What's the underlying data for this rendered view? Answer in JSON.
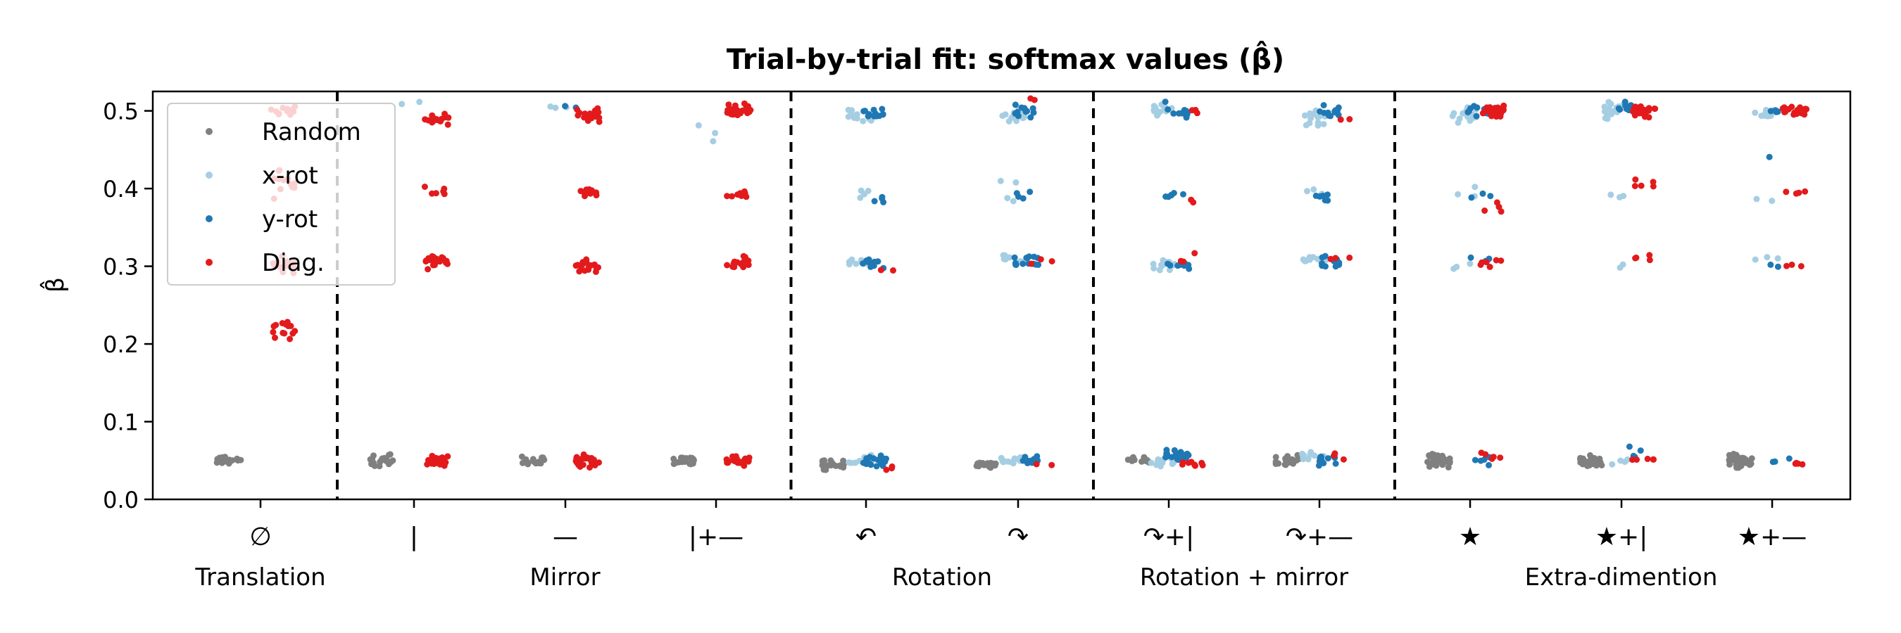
{
  "chart_data": {
    "type": "scatter",
    "title": "Trial-by-trial fit: softmax values (β̂)",
    "ylabel": "β̂",
    "xlabel": "",
    "ylim": [
      0.0,
      0.525
    ],
    "yticks": [
      0.0,
      0.1,
      0.2,
      0.3,
      0.4,
      0.5
    ],
    "grid": false,
    "legend_position": "top-left",
    "categories": [
      "∅",
      "|",
      "—",
      "|+—",
      "↶",
      "↷",
      "↷+|",
      "↷+—",
      "★",
      "★+|",
      "★+—"
    ],
    "groups": [
      {
        "label": "Translation",
        "categories": [
          "∅"
        ]
      },
      {
        "label": "Mirror",
        "categories": [
          "|",
          "—",
          "|+—"
        ]
      },
      {
        "label": "Rotation",
        "categories": [
          "↶",
          "↷"
        ]
      },
      {
        "label": "Rotation + mirror",
        "categories": [
          "↷+|",
          "↷+—"
        ]
      },
      {
        "label": "Extra-dimention",
        "categories": [
          "★",
          "★+|",
          "★+—"
        ]
      }
    ],
    "group_separators_after_category_index": [
      0,
      3,
      5,
      7
    ],
    "series": [
      {
        "name": "Random",
        "color": "#808080"
      },
      {
        "name": "x-rot",
        "color": "#a6cee3"
      },
      {
        "name": "y-rot",
        "color": "#1f78b4"
      },
      {
        "name": "Diag.",
        "color": "#e31a1c"
      }
    ],
    "points": [
      {
        "category": 0,
        "series": "Random",
        "clusters": [
          {
            "y": 0.05,
            "spread": 0.009,
            "n": 22
          }
        ]
      },
      {
        "category": 0,
        "series": "Diag.",
        "clusters": [
          {
            "y": 0.5,
            "spread": 0.01,
            "n": 14
          },
          {
            "y": 0.41,
            "spread": 0.03,
            "n": 12
          },
          {
            "y": 0.3,
            "spread": 0.02,
            "n": 16
          },
          {
            "y": 0.22,
            "spread": 0.02,
            "n": 14
          }
        ]
      },
      {
        "category": 1,
        "series": "Random",
        "clusters": [
          {
            "y": 0.05,
            "spread": 0.012,
            "n": 22
          }
        ]
      },
      {
        "category": 1,
        "series": "x-rot",
        "clusters": [
          {
            "y": 0.51,
            "spread": 0.004,
            "n": 2
          }
        ]
      },
      {
        "category": 1,
        "series": "Diag.",
        "clusters": [
          {
            "y": 0.05,
            "spread": 0.01,
            "n": 22
          },
          {
            "y": 0.49,
            "spread": 0.012,
            "n": 20
          },
          {
            "y": 0.395,
            "spread": 0.008,
            "n": 6
          },
          {
            "y": 0.305,
            "spread": 0.012,
            "n": 20
          }
        ]
      },
      {
        "category": 2,
        "series": "Random",
        "clusters": [
          {
            "y": 0.05,
            "spread": 0.009,
            "n": 16
          }
        ]
      },
      {
        "category": 2,
        "series": "x-rot",
        "clusters": [
          {
            "y": 0.505,
            "spread": 0.003,
            "n": 3
          }
        ]
      },
      {
        "category": 2,
        "series": "y-rot",
        "clusters": [
          {
            "y": 0.505,
            "spread": 0.003,
            "n": 2
          }
        ]
      },
      {
        "category": 2,
        "series": "Diag.",
        "clusters": [
          {
            "y": 0.05,
            "spread": 0.01,
            "n": 28
          },
          {
            "y": 0.495,
            "spread": 0.012,
            "n": 20
          },
          {
            "y": 0.395,
            "spread": 0.012,
            "n": 12
          },
          {
            "y": 0.3,
            "spread": 0.01,
            "n": 20
          }
        ]
      },
      {
        "category": 3,
        "series": "Random",
        "clusters": [
          {
            "y": 0.05,
            "spread": 0.008,
            "n": 18
          }
        ]
      },
      {
        "category": 3,
        "series": "x-rot",
        "clusters": [
          {
            "y": 0.47,
            "spread": 0.02,
            "n": 3
          }
        ]
      },
      {
        "category": 3,
        "series": "Diag.",
        "clusters": [
          {
            "y": 0.05,
            "spread": 0.008,
            "n": 22
          },
          {
            "y": 0.5,
            "spread": 0.012,
            "n": 30
          },
          {
            "y": 0.39,
            "spread": 0.01,
            "n": 10
          },
          {
            "y": 0.305,
            "spread": 0.012,
            "n": 18
          }
        ]
      },
      {
        "category": 4,
        "series": "Random",
        "clusters": [
          {
            "y": 0.045,
            "spread": 0.01,
            "n": 24
          }
        ]
      },
      {
        "category": 4,
        "series": "x-rot",
        "clusters": [
          {
            "y": 0.05,
            "spread": 0.01,
            "n": 12
          },
          {
            "y": 0.495,
            "spread": 0.012,
            "n": 12
          },
          {
            "y": 0.39,
            "spread": 0.015,
            "n": 4
          },
          {
            "y": 0.305,
            "spread": 0.01,
            "n": 12
          }
        ]
      },
      {
        "category": 4,
        "series": "y-rot",
        "clusters": [
          {
            "y": 0.05,
            "spread": 0.012,
            "n": 16
          },
          {
            "y": 0.495,
            "spread": 0.012,
            "n": 12
          },
          {
            "y": 0.385,
            "spread": 0.006,
            "n": 4
          },
          {
            "y": 0.305,
            "spread": 0.012,
            "n": 10
          }
        ]
      },
      {
        "category": 4,
        "series": "Diag.",
        "clusters": [
          {
            "y": 0.04,
            "spread": 0.004,
            "n": 3
          },
          {
            "y": 0.295,
            "spread": 0.004,
            "n": 2
          }
        ]
      },
      {
        "category": 5,
        "series": "Random",
        "clusters": [
          {
            "y": 0.045,
            "spread": 0.006,
            "n": 18
          }
        ]
      },
      {
        "category": 5,
        "series": "x-rot",
        "clusters": [
          {
            "y": 0.05,
            "spread": 0.01,
            "n": 14
          },
          {
            "y": 0.495,
            "spread": 0.014,
            "n": 16
          },
          {
            "y": 0.4,
            "spread": 0.02,
            "n": 4
          },
          {
            "y": 0.31,
            "spread": 0.01,
            "n": 10
          }
        ]
      },
      {
        "category": 5,
        "series": "y-rot",
        "clusters": [
          {
            "y": 0.05,
            "spread": 0.01,
            "n": 10
          },
          {
            "y": 0.5,
            "spread": 0.014,
            "n": 12
          },
          {
            "y": 0.39,
            "spread": 0.008,
            "n": 4
          },
          {
            "y": 0.305,
            "spread": 0.015,
            "n": 14
          }
        ]
      },
      {
        "category": 5,
        "series": "Diag.",
        "clusters": [
          {
            "y": 0.045,
            "spread": 0.006,
            "n": 2
          },
          {
            "y": 0.305,
            "spread": 0.008,
            "n": 3
          },
          {
            "y": 0.515,
            "spread": 0.004,
            "n": 2
          }
        ]
      },
      {
        "category": 6,
        "series": "Random",
        "clusters": [
          {
            "y": 0.05,
            "spread": 0.008,
            "n": 12
          }
        ]
      },
      {
        "category": 6,
        "series": "x-rot",
        "clusters": [
          {
            "y": 0.045,
            "spread": 0.01,
            "n": 12
          },
          {
            "y": 0.5,
            "spread": 0.014,
            "n": 16
          },
          {
            "y": 0.3,
            "spread": 0.01,
            "n": 12
          }
        ]
      },
      {
        "category": 6,
        "series": "y-rot",
        "clusters": [
          {
            "y": 0.055,
            "spread": 0.012,
            "n": 22
          },
          {
            "y": 0.5,
            "spread": 0.014,
            "n": 12
          },
          {
            "y": 0.39,
            "spread": 0.006,
            "n": 6
          },
          {
            "y": 0.3,
            "spread": 0.008,
            "n": 8
          }
        ]
      },
      {
        "category": 6,
        "series": "Diag.",
        "clusters": [
          {
            "y": 0.045,
            "spread": 0.006,
            "n": 8
          },
          {
            "y": 0.5,
            "spread": 0.008,
            "n": 3
          },
          {
            "y": 0.385,
            "spread": 0.006,
            "n": 2
          },
          {
            "y": 0.31,
            "spread": 0.015,
            "n": 3
          }
        ]
      },
      {
        "category": 7,
        "series": "Random",
        "clusters": [
          {
            "y": 0.05,
            "spread": 0.01,
            "n": 22
          }
        ]
      },
      {
        "category": 7,
        "series": "x-rot",
        "clusters": [
          {
            "y": 0.055,
            "spread": 0.01,
            "n": 12
          },
          {
            "y": 0.49,
            "spread": 0.016,
            "n": 14
          },
          {
            "y": 0.395,
            "spread": 0.006,
            "n": 3
          },
          {
            "y": 0.31,
            "spread": 0.008,
            "n": 10
          }
        ]
      },
      {
        "category": 7,
        "series": "y-rot",
        "clusters": [
          {
            "y": 0.05,
            "spread": 0.01,
            "n": 12
          },
          {
            "y": 0.5,
            "spread": 0.012,
            "n": 12
          },
          {
            "y": 0.39,
            "spread": 0.01,
            "n": 6
          },
          {
            "y": 0.305,
            "spread": 0.012,
            "n": 10
          }
        ]
      },
      {
        "category": 7,
        "series": "Diag.",
        "clusters": [
          {
            "y": 0.055,
            "spread": 0.006,
            "n": 4
          },
          {
            "y": 0.49,
            "spread": 0.004,
            "n": 2
          },
          {
            "y": 0.31,
            "spread": 0.003,
            "n": 3
          }
        ]
      },
      {
        "category": 8,
        "series": "Random",
        "clusters": [
          {
            "y": 0.05,
            "spread": 0.014,
            "n": 36
          }
        ]
      },
      {
        "category": 8,
        "series": "x-rot",
        "clusters": [
          {
            "y": 0.495,
            "spread": 0.014,
            "n": 16
          },
          {
            "y": 0.395,
            "spread": 0.012,
            "n": 3
          },
          {
            "y": 0.3,
            "spread": 0.008,
            "n": 3
          }
        ]
      },
      {
        "category": 8,
        "series": "y-rot",
        "clusters": [
          {
            "y": 0.05,
            "spread": 0.01,
            "n": 5
          },
          {
            "y": 0.5,
            "spread": 0.012,
            "n": 10
          },
          {
            "y": 0.39,
            "spread": 0.01,
            "n": 3
          },
          {
            "y": 0.31,
            "spread": 0.01,
            "n": 3
          }
        ]
      },
      {
        "category": 8,
        "series": "Diag.",
        "clusters": [
          {
            "y": 0.055,
            "spread": 0.01,
            "n": 5
          },
          {
            "y": 0.5,
            "spread": 0.012,
            "n": 30
          },
          {
            "y": 0.375,
            "spread": 0.015,
            "n": 4
          },
          {
            "y": 0.305,
            "spread": 0.01,
            "n": 6
          }
        ]
      },
      {
        "category": 9,
        "series": "Random",
        "clusters": [
          {
            "y": 0.05,
            "spread": 0.01,
            "n": 28
          }
        ]
      },
      {
        "category": 9,
        "series": "x-rot",
        "clusters": [
          {
            "y": 0.05,
            "spread": 0.006,
            "n": 4
          },
          {
            "y": 0.5,
            "spread": 0.014,
            "n": 18
          },
          {
            "y": 0.39,
            "spread": 0.006,
            "n": 3
          },
          {
            "y": 0.3,
            "spread": 0.004,
            "n": 2
          }
        ]
      },
      {
        "category": 9,
        "series": "y-rot",
        "clusters": [
          {
            "y": 0.06,
            "spread": 0.012,
            "n": 4
          },
          {
            "y": 0.505,
            "spread": 0.01,
            "n": 10
          }
        ]
      },
      {
        "category": 9,
        "series": "Diag.",
        "clusters": [
          {
            "y": 0.05,
            "spread": 0.006,
            "n": 5
          },
          {
            "y": 0.5,
            "spread": 0.012,
            "n": 26
          },
          {
            "y": 0.405,
            "spread": 0.008,
            "n": 5
          },
          {
            "y": 0.31,
            "spread": 0.006,
            "n": 4
          }
        ]
      },
      {
        "category": 10,
        "series": "Random",
        "clusters": [
          {
            "y": 0.05,
            "spread": 0.014,
            "n": 40
          }
        ]
      },
      {
        "category": 10,
        "series": "x-rot",
        "clusters": [
          {
            "y": 0.5,
            "spread": 0.014,
            "n": 16
          },
          {
            "y": 0.385,
            "spread": 0.004,
            "n": 2
          },
          {
            "y": 0.31,
            "spread": 0.004,
            "n": 3
          }
        ]
      },
      {
        "category": 10,
        "series": "y-rot",
        "clusters": [
          {
            "y": 0.05,
            "spread": 0.008,
            "n": 3
          },
          {
            "y": 0.5,
            "spread": 0.006,
            "n": 4
          },
          {
            "y": 0.44,
            "spread": 0.003,
            "n": 1
          },
          {
            "y": 0.3,
            "spread": 0.004,
            "n": 2
          }
        ]
      },
      {
        "category": 10,
        "series": "Diag.",
        "clusters": [
          {
            "y": 0.045,
            "spread": 0.004,
            "n": 4
          },
          {
            "y": 0.5,
            "spread": 0.01,
            "n": 20
          },
          {
            "y": 0.395,
            "spread": 0.006,
            "n": 4
          },
          {
            "y": 0.3,
            "spread": 0.004,
            "n": 3
          }
        ]
      }
    ]
  }
}
